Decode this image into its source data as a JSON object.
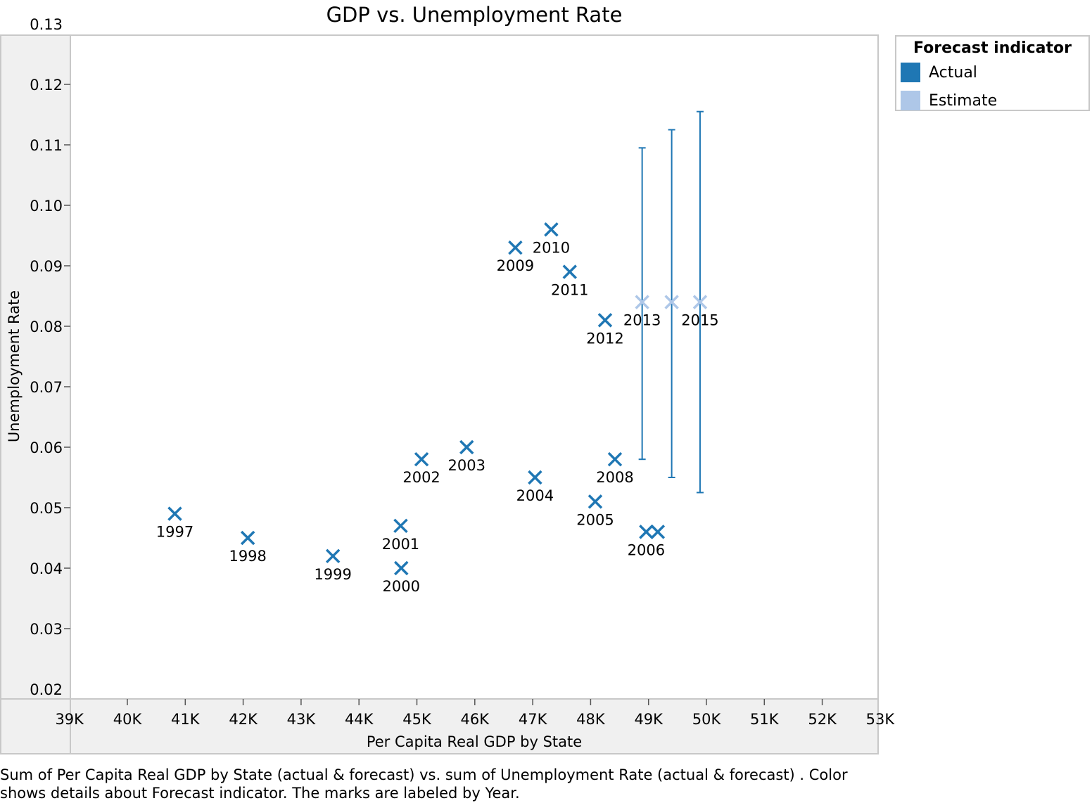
{
  "colors": {
    "actual": "#1f77b4",
    "estimate": "#aec7e8",
    "pane_background": "#f0f0f0",
    "border": "#c8c8c8"
  },
  "legend": {
    "title": "Forecast indicator",
    "items": [
      {
        "label": "Actual",
        "color": "#1f77b4"
      },
      {
        "label": "Estimate",
        "color": "#aec7e8"
      }
    ],
    "placement": "top-right, outside plot"
  },
  "caption": {
    "line1": "Sum of Per Capita Real GDP by State (actual & forecast)  vs. sum of Unemployment Rate (actual & forecast) .  Color",
    "line2": "shows details about Forecast indicator.  The marks are labeled by Year."
  },
  "chart_data": {
    "type": "scatter",
    "title": "GDP vs. Unemployment Rate",
    "xlabel": "Per Capita Real GDP by State",
    "ylabel": "Unemployment Rate",
    "xlim": [
      39000,
      53000
    ],
    "ylim": [
      0.02,
      0.13
    ],
    "x_ticks": [
      39000,
      40000,
      41000,
      42000,
      43000,
      44000,
      45000,
      46000,
      47000,
      48000,
      49000,
      50000,
      51000,
      52000,
      53000
    ],
    "x_tick_labels": [
      "39K",
      "40K",
      "41K",
      "42K",
      "43K",
      "44K",
      "45K",
      "46K",
      "47K",
      "48K",
      "49K",
      "50K",
      "51K",
      "52K",
      "53K"
    ],
    "y_ticks": [
      0.02,
      0.03,
      0.04,
      0.05,
      0.06,
      0.07,
      0.08,
      0.09,
      0.1,
      0.11,
      0.12,
      0.13
    ],
    "y_tick_labels": [
      "0.02",
      "0.03",
      "0.04",
      "0.05",
      "0.06",
      "0.07",
      "0.08",
      "0.09",
      "0.10",
      "0.11",
      "0.12",
      "0.13"
    ],
    "grid": false,
    "marker": "x",
    "series": [
      {
        "name": "Actual",
        "color": "#1f77b4",
        "points": [
          {
            "label": "1997",
            "x": 40820,
            "y": 0.049
          },
          {
            "label": "1998",
            "x": 42080,
            "y": 0.045
          },
          {
            "label": "1999",
            "x": 43550,
            "y": 0.042
          },
          {
            "label": "2000",
            "x": 44730,
            "y": 0.04
          },
          {
            "label": "2001",
            "x": 44720,
            "y": 0.047
          },
          {
            "label": "2002",
            "x": 45080,
            "y": 0.058
          },
          {
            "label": "2003",
            "x": 45860,
            "y": 0.06
          },
          {
            "label": "2004",
            "x": 47040,
            "y": 0.055
          },
          {
            "label": "2005",
            "x": 48080,
            "y": 0.051
          },
          {
            "label": "2006",
            "x": 48960,
            "y": 0.046
          },
          {
            "label": "",
            "x": 49160,
            "y": 0.046
          },
          {
            "label": "2008",
            "x": 48420,
            "y": 0.058
          },
          {
            "label": "2009",
            "x": 46700,
            "y": 0.093
          },
          {
            "label": "2010",
            "x": 47320,
            "y": 0.096
          },
          {
            "label": "2011",
            "x": 47640,
            "y": 0.089
          },
          {
            "label": "2012",
            "x": 48250,
            "y": 0.081
          }
        ]
      },
      {
        "name": "Estimate",
        "color": "#aec7e8",
        "points": [
          {
            "label": "2013",
            "x": 48890,
            "y": 0.084,
            "err_low": 0.058,
            "err_high": 0.1095
          },
          {
            "label": "",
            "x": 49400,
            "y": 0.084,
            "err_low": 0.055,
            "err_high": 0.1125
          },
          {
            "label": "2015",
            "x": 49890,
            "y": 0.084,
            "err_low": 0.0525,
            "err_high": 0.1155
          }
        ]
      }
    ]
  }
}
